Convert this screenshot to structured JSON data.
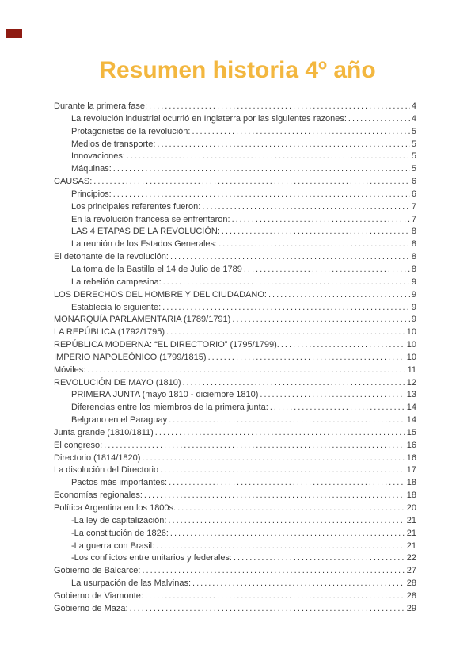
{
  "page": {
    "background_color": "#FFFFFF",
    "marker_color": "#8E1B12",
    "text_color": "#3A3A3A"
  },
  "title": {
    "text": "Resumen historia 4º año",
    "color": "#F3B73F"
  },
  "toc": {
    "entries": [
      {
        "label": "Durante la primera fase:",
        "page": "4",
        "level": 1
      },
      {
        "label": "La revolución industrial ocurrió en Inglaterra por las siguientes razones:",
        "page": "4",
        "level": 2
      },
      {
        "label": "Protagonistas de la revolución:",
        "page": "5",
        "level": 2
      },
      {
        "label": "Medios de transporte:",
        "page": "5",
        "level": 2
      },
      {
        "label": "Innovaciones:",
        "page": "5",
        "level": 2
      },
      {
        "label": "Máquinas:",
        "page": "5",
        "level": 2
      },
      {
        "label": "CAUSAS:",
        "page": "6",
        "level": 1
      },
      {
        "label": "Principios:",
        "page": "6",
        "level": 2
      },
      {
        "label": "Los principales referentes fueron:",
        "page": "7",
        "level": 2
      },
      {
        "label": "En la revolución francesa se enfrentaron:",
        "page": "7",
        "level": 2
      },
      {
        "label": "LAS 4 ETAPAS DE LA REVOLUCIÓN:",
        "page": "8",
        "level": 2
      },
      {
        "label": "La reunión de los Estados Generales:",
        "page": "8",
        "level": 2
      },
      {
        "label": "El detonante de la revolución:",
        "page": "8",
        "level": 1
      },
      {
        "label": "La toma de la Bastilla el 14 de Julio de 1789",
        "page": "8",
        "level": 2
      },
      {
        "label": "La rebelión campesina:",
        "page": "9",
        "level": 2
      },
      {
        "label": "LOS DERECHOS DEL HOMBRE Y DEL CIUDADANO:",
        "page": "9",
        "level": 1
      },
      {
        "label": "Establecía lo siguiente:",
        "page": "9",
        "level": 2
      },
      {
        "label": "MONARQUÍA PARLAMENTARIA (1789/1791)",
        "page": "9",
        "level": 1
      },
      {
        "label": "LA REPÚBLICA (1792/1795)",
        "page": "10",
        "level": 1
      },
      {
        "label": "REPÚBLICA MODERNA: “EL DIRECTORIO” (1795/1799).",
        "page": "10",
        "level": 1
      },
      {
        "label": "IMPERIO NAPOLEÓNICO (1799/1815)",
        "page": "10",
        "level": 1
      },
      {
        "label": "Móviles:",
        "page": "11",
        "level": 1
      },
      {
        "label": "REVOLUCIÓN DE MAYO (1810)",
        "page": "12",
        "level": 1
      },
      {
        "label": "PRIMERA JUNTA (mayo 1810 - diciembre 1810)",
        "page": "13",
        "level": 2
      },
      {
        "label": "Diferencias entre los miembros de la primera junta:",
        "page": "14",
        "level": 2
      },
      {
        "label": "Belgrano en el Paraguay",
        "page": "14",
        "level": 2
      },
      {
        "label": "Junta grande (1810/1811)",
        "page": "15",
        "level": 1
      },
      {
        "label": "El congreso:",
        "page": "16",
        "level": 1
      },
      {
        "label": "Directorio (1814/1820)",
        "page": "16",
        "level": 1
      },
      {
        "label": "La disolución del Directorio",
        "page": "17",
        "level": 1
      },
      {
        "label": "Pactos más importantes:",
        "page": "18",
        "level": 2
      },
      {
        "label": "Economías regionales:",
        "page": "18",
        "level": 1
      },
      {
        "label": "Política Argentina en los 1800s.",
        "page": "20",
        "level": 1
      },
      {
        "label": "-La ley de capitalización:",
        "page": "21",
        "level": 2
      },
      {
        "label": "-La constitución de 1826:",
        "page": "21",
        "level": 2
      },
      {
        "label": "-La guerra con Brasil:",
        "page": "21",
        "level": 2
      },
      {
        "label": "-Los conflictos entre unitarios y federales:",
        "page": "22",
        "level": 2
      },
      {
        "label": "Gobierno de Balcarce:",
        "page": "27",
        "level": 1
      },
      {
        "label": "La usurpación de las Malvinas:",
        "page": "28",
        "level": 2
      },
      {
        "label": "Gobierno de Viamonte:",
        "page": "28",
        "level": 1
      },
      {
        "label": "Gobierno de Maza:",
        "page": "29",
        "level": 1
      }
    ]
  }
}
